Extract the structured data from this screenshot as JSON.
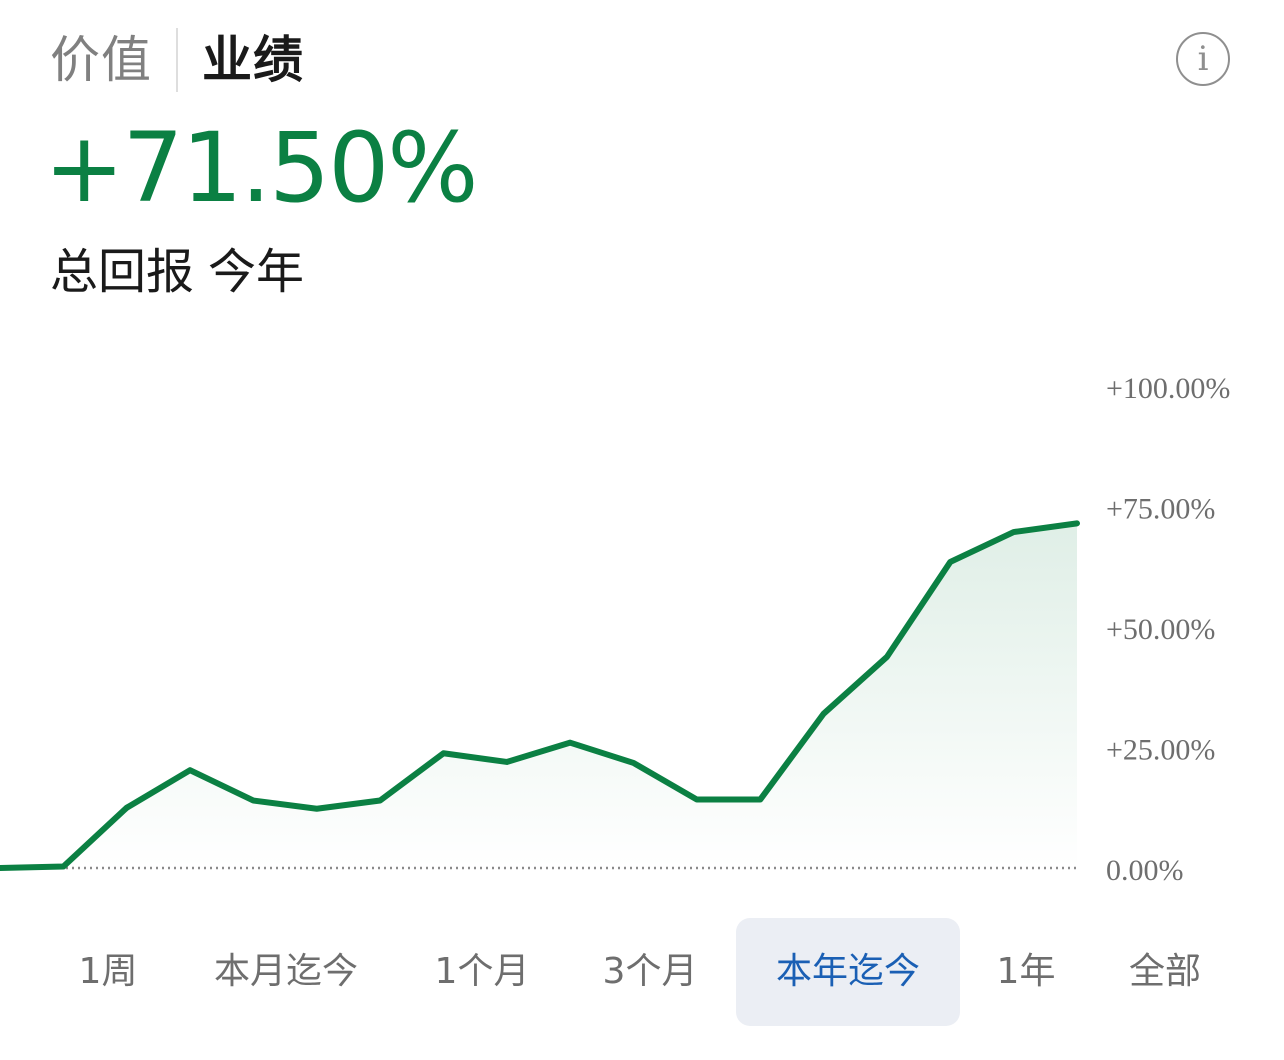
{
  "header": {
    "tabs": [
      {
        "label": "价值",
        "active": false
      },
      {
        "label": "业绩",
        "active": true
      }
    ],
    "info_icon": "info-icon",
    "info_glyph": "i"
  },
  "summary": {
    "return_value": "+71.50%",
    "caption_metric": "总回报",
    "caption_period": "今年"
  },
  "colors": {
    "positive": "#0b8043",
    "selected_range": "#1a5fb4",
    "selected_range_bg": "#ebeef4"
  },
  "chart_data": {
    "type": "area",
    "x": [
      0,
      1,
      2,
      3,
      4,
      5,
      6,
      7,
      8,
      9,
      10,
      11,
      12,
      13,
      14,
      15,
      16,
      17
    ],
    "series": [
      {
        "values": [
          0.0,
          0.3,
          12.5,
          20.3,
          14.0,
          12.3,
          14.0,
          23.8,
          22.0,
          26.0,
          21.8,
          14.2,
          14.2,
          32.0,
          43.8,
          63.5,
          69.7,
          71.5
        ]
      }
    ],
    "y_ticks": [
      "+100.00%",
      "+75.00%",
      "+50.00%",
      "+25.00%",
      "0.00%"
    ],
    "y_tick_values": [
      100,
      75,
      50,
      25,
      0
    ],
    "ylim": [
      0,
      100
    ],
    "baseline_value": 0,
    "grid": false,
    "line_color": "#0b8043"
  },
  "ranges": [
    {
      "label": "1周",
      "selected": false
    },
    {
      "label": "本月迄今",
      "selected": false
    },
    {
      "label": "1个月",
      "selected": false
    },
    {
      "label": "3个月",
      "selected": false
    },
    {
      "label": "本年迄今",
      "selected": true
    },
    {
      "label": "1年",
      "selected": false
    },
    {
      "label": "全部",
      "selected": false
    }
  ]
}
